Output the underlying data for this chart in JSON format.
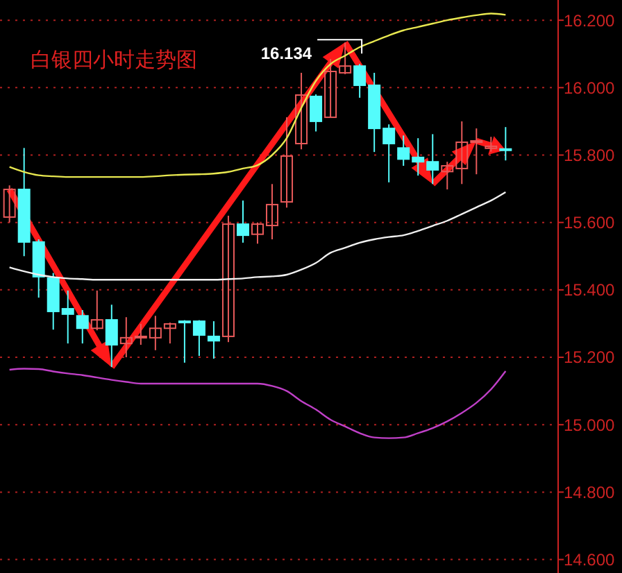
{
  "chart_data": {
    "type": "candlestick",
    "title": "白银四小时走势图",
    "categories": [
      null,
      null,
      null,
      null,
      null,
      null,
      null,
      null,
      null,
      null,
      null,
      null,
      null,
      null,
      null,
      null,
      null,
      null,
      null,
      null,
      null,
      null,
      null,
      null,
      null,
      null,
      null,
      null,
      null,
      null,
      null,
      null,
      null,
      null,
      null
    ],
    "ohlc": [
      [
        15.616,
        15.71,
        15.6,
        15.698
      ],
      [
        15.698,
        15.821,
        15.5,
        15.542
      ],
      [
        15.542,
        15.55,
        15.377,
        15.439
      ],
      [
        15.435,
        15.45,
        15.282,
        15.336
      ],
      [
        15.344,
        15.398,
        15.241,
        15.328
      ],
      [
        15.323,
        15.34,
        15.241,
        15.286
      ],
      [
        15.286,
        15.398,
        15.28,
        15.311
      ],
      [
        15.311,
        15.356,
        15.171,
        15.237
      ],
      [
        15.241,
        15.319,
        15.2,
        15.258
      ],
      [
        15.258,
        15.299,
        15.237,
        15.262
      ],
      [
        15.258,
        15.323,
        15.221,
        15.286
      ],
      [
        15.286,
        15.303,
        15.241,
        15.299
      ],
      [
        15.307,
        15.31,
        15.184,
        15.303
      ],
      [
        15.307,
        15.31,
        15.204,
        15.266
      ],
      [
        15.262,
        15.307,
        15.196,
        15.249
      ],
      [
        15.262,
        15.62,
        15.245,
        15.595
      ],
      [
        15.595,
        15.665,
        15.54,
        15.562
      ],
      [
        15.565,
        15.6,
        15.537,
        15.595
      ],
      [
        15.591,
        15.714,
        15.55,
        15.653
      ],
      [
        15.661,
        15.912,
        15.644,
        15.797
      ],
      [
        15.834,
        16.044,
        15.817,
        15.978
      ],
      [
        15.974,
        15.98,
        15.87,
        15.9
      ],
      [
        15.912,
        16.085,
        15.912,
        16.048
      ],
      [
        16.044,
        16.134,
        16.04,
        16.064
      ],
      [
        16.064,
        16.07,
        15.97,
        16.007
      ],
      [
        16.007,
        16.044,
        15.809,
        15.879
      ],
      [
        15.879,
        15.891,
        15.719,
        15.834
      ],
      [
        15.821,
        15.858,
        15.768,
        15.788
      ],
      [
        15.793,
        15.85,
        15.739,
        15.78
      ],
      [
        15.78,
        15.862,
        15.714,
        15.756
      ],
      [
        15.751,
        15.78,
        15.698,
        15.768
      ],
      [
        15.76,
        15.9,
        15.714,
        15.838
      ],
      [
        15.838,
        15.879,
        15.743,
        15.842
      ],
      [
        15.82,
        15.854,
        15.81,
        15.826
      ],
      [
        15.818,
        15.883,
        15.784,
        15.815
      ]
    ],
    "colors": [
      "#e85a5a",
      "#54fcfc",
      "#54fcfc",
      "#54fcfc",
      "#54fcfc",
      "#54fcfc",
      "#e85a5a",
      "#54fcfc",
      "#e85a5a",
      "#e85a5a",
      "#e85a5a",
      "#e85a5a",
      "#54fcfc",
      "#54fcfc",
      "#54fcfc",
      "#e85a5a",
      "#54fcfc",
      "#e85a5a",
      "#e85a5a",
      "#e85a5a",
      "#e85a5a",
      "#54fcfc",
      "#e85a5a",
      "#e85a5a",
      "#54fcfc",
      "#54fcfc",
      "#54fcfc",
      "#54fcfc",
      "#54fcfc",
      "#54fcfc",
      "#e85a5a",
      "#e85a5a",
      "#e85a5a",
      "#e85a5a",
      "#54fcfc"
    ],
    "series": [
      {
        "type": "line",
        "color": "#e8e850",
        "values": [
          15.765,
          15.75,
          15.74,
          15.737,
          15.735,
          15.735,
          15.735,
          15.735,
          15.735,
          15.735,
          15.737,
          15.74,
          15.742,
          15.743,
          15.745,
          15.75,
          15.76,
          15.77,
          15.8,
          15.85,
          15.94,
          16.02,
          16.07,
          16.095,
          16.12,
          16.138,
          16.155,
          16.17,
          16.18,
          16.19,
          16.2,
          16.208,
          16.215,
          16.22,
          16.216
        ]
      },
      {
        "type": "line",
        "color": "#f0f0f0",
        "values": [
          15.467,
          15.455,
          15.445,
          15.438,
          15.434,
          15.432,
          15.43,
          15.43,
          15.43,
          15.43,
          15.43,
          15.43,
          15.43,
          15.43,
          15.43,
          15.432,
          15.434,
          15.438,
          15.44,
          15.445,
          15.46,
          15.48,
          15.51,
          15.525,
          15.54,
          15.55,
          15.557,
          15.562,
          15.575,
          15.59,
          15.605,
          15.625,
          15.645,
          15.665,
          15.69
        ]
      },
      {
        "type": "line",
        "color": "#c040c8",
        "values": [
          15.163,
          15.166,
          15.165,
          15.158,
          15.152,
          15.147,
          15.14,
          15.133,
          15.127,
          15.122,
          15.122,
          15.122,
          15.122,
          15.122,
          15.122,
          15.122,
          15.122,
          15.122,
          15.115,
          15.1,
          15.07,
          15.045,
          15.015,
          14.995,
          14.975,
          14.962,
          14.96,
          14.962,
          14.975,
          14.99,
          15.01,
          15.035,
          15.065,
          15.105,
          15.159
        ]
      }
    ],
    "annotations": [
      "16.134"
    ],
    "ylim": [
      14.56,
      16.26
    ],
    "yticks": [
      {
        "value": 14.6,
        "label": "14.600"
      },
      {
        "value": 14.8,
        "label": "14.800"
      },
      {
        "value": 15.0,
        "label": "15.000"
      },
      {
        "value": 15.2,
        "label": "15.200"
      },
      {
        "value": 15.4,
        "label": "15.400"
      },
      {
        "value": 15.6,
        "label": "15.600"
      },
      {
        "value": 15.8,
        "label": "15.800"
      },
      {
        "value": 16.0,
        "label": "16.000"
      },
      {
        "value": 16.2,
        "label": "16.200"
      }
    ],
    "grid": "y",
    "tick_labels": "y"
  }
}
